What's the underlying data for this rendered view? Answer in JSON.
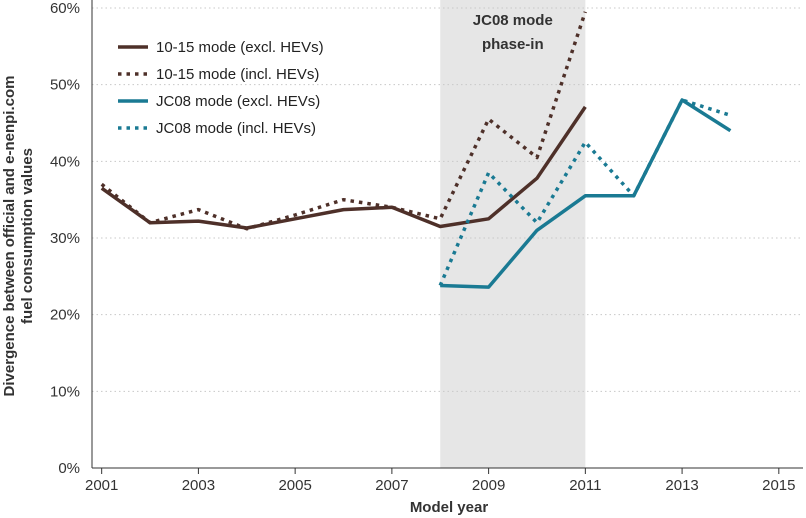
{
  "chart_data": {
    "type": "line",
    "xlabel": "Model year",
    "ylabel_lines": [
      "Divergence between official and e-nenpi.com",
      "fuel consumption values"
    ],
    "xlim": [
      2000.8,
      2015.5
    ],
    "ylim": [
      0,
      60
    ],
    "x_ticks": [
      2001,
      2003,
      2005,
      2007,
      2009,
      2011,
      2013,
      2015
    ],
    "x_tick_labels": [
      "2001",
      "2003",
      "2005",
      "2007",
      "2009",
      "2011",
      "2013",
      "2015"
    ],
    "y_ticks": [
      0,
      10,
      20,
      30,
      40,
      50,
      60
    ],
    "y_tick_labels": [
      "0%",
      "10%",
      "20%",
      "30%",
      "40%",
      "50%",
      "60%"
    ],
    "grid": "horizontal dotted",
    "legend_position": "top-left",
    "shaded_band": {
      "x_start": 2008,
      "x_end": 2011,
      "label_lines": [
        "JC08 mode",
        "phase-in"
      ],
      "color": "#e6e6e6"
    },
    "series": [
      {
        "name": "10-15 mode (excl. HEVs)",
        "color": "#4e3029",
        "style": "solid",
        "x": [
          2001,
          2002,
          2003,
          2004,
          2005,
          2006,
          2007,
          2008,
          2009,
          2010,
          2011
        ],
        "y": [
          36.5,
          32.0,
          32.2,
          31.3,
          32.5,
          33.7,
          34.0,
          31.5,
          32.5,
          37.8,
          47.1
        ]
      },
      {
        "name": "10-15 mode (incl. HEVs)",
        "color": "#4e3029",
        "style": "dotted",
        "x": [
          2001,
          2002,
          2003,
          2004,
          2005,
          2006,
          2007,
          2008,
          2009,
          2010,
          2011
        ],
        "y": [
          37.0,
          32.0,
          33.7,
          31.2,
          33.0,
          35.0,
          34.0,
          32.5,
          45.5,
          40.5,
          59.5
        ]
      },
      {
        "name": "JC08 mode (excl. HEVs)",
        "color": "#1a7a93",
        "style": "solid",
        "x": [
          2008,
          2009,
          2010,
          2011,
          2012,
          2013,
          2014
        ],
        "y": [
          23.8,
          23.6,
          31.0,
          35.5,
          35.5,
          48.0,
          44.0
        ]
      },
      {
        "name": "JC08 mode (incl. HEVs)",
        "color": "#1a7a93",
        "style": "dotted",
        "x": [
          2008,
          2009,
          2010,
          2011,
          2012,
          2013,
          2014
        ],
        "y": [
          23.8,
          38.5,
          32.0,
          42.5,
          35.5,
          48.0,
          46.0
        ]
      }
    ]
  }
}
